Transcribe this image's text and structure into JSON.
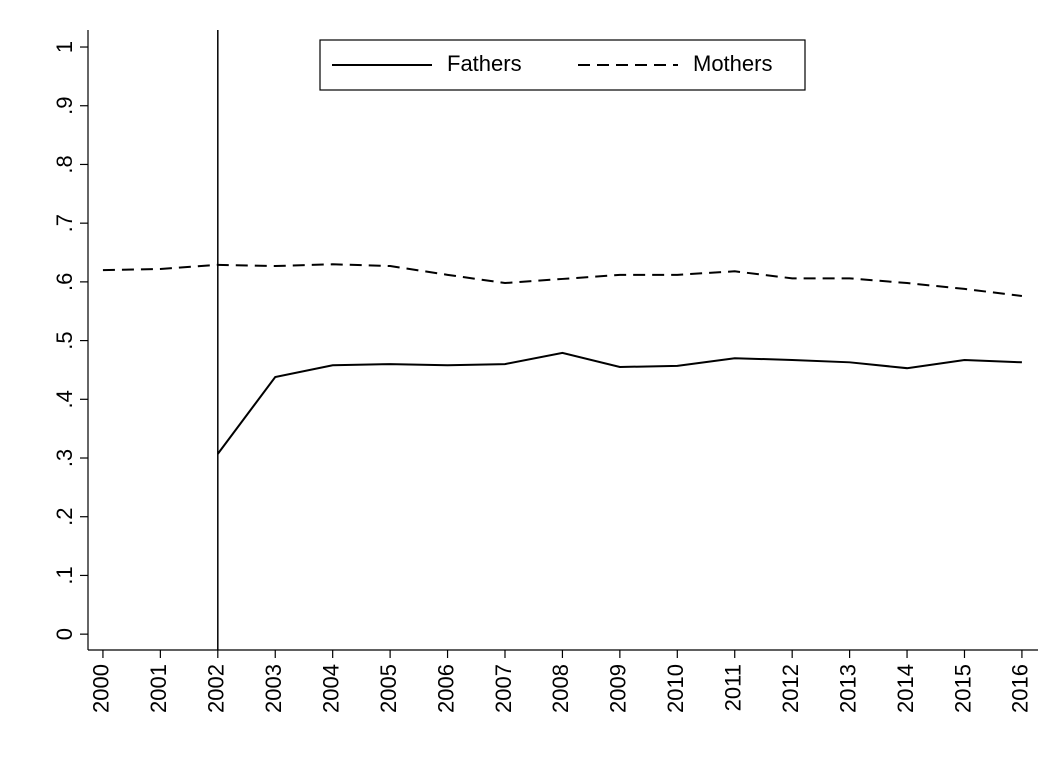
{
  "chart_data": {
    "type": "line",
    "x": [
      2000,
      2001,
      2002,
      2003,
      2004,
      2005,
      2006,
      2007,
      2008,
      2009,
      2010,
      2011,
      2012,
      2013,
      2014,
      2015,
      2016
    ],
    "series": [
      {
        "name": "Fathers",
        "color": "#000000",
        "style": "solid",
        "values": [
          null,
          null,
          0.307,
          0.438,
          0.458,
          0.46,
          0.458,
          0.46,
          0.479,
          0.455,
          0.457,
          0.47,
          0.467,
          0.463,
          0.453,
          0.467,
          0.463
        ]
      },
      {
        "name": "Mothers",
        "color": "#000000",
        "style": "dashed",
        "values": [
          0.62,
          0.622,
          0.629,
          0.627,
          0.63,
          0.627,
          0.612,
          0.598,
          0.605,
          0.612,
          0.612,
          0.618,
          0.606,
          0.606,
          0.598,
          0.588,
          0.576
        ]
      }
    ],
    "vline": 2002,
    "xlim": [
      1999.74,
      2016.28
    ],
    "xticks": [
      2000,
      2001,
      2002,
      2003,
      2004,
      2005,
      2006,
      2007,
      2008,
      2009,
      2010,
      2011,
      2012,
      2013,
      2014,
      2015,
      2016
    ],
    "ylim": [
      -0.027,
      1.029
    ],
    "yticks": [
      0,
      {
        "value": 0.1,
        "label": ".1"
      },
      {
        "value": 0.2,
        "label": ".2"
      },
      {
        "value": 0.3,
        "label": ".3"
      },
      {
        "value": 0.4,
        "label": ".4"
      },
      {
        "value": 0.5,
        "label": ".5"
      },
      {
        "value": 0.6,
        "label": ".6"
      },
      {
        "value": 0.7,
        "label": ".7"
      },
      {
        "value": 0.8,
        "label": ".8"
      },
      {
        "value": 0.9,
        "label": ".9"
      },
      1
    ],
    "legend": "top"
  }
}
